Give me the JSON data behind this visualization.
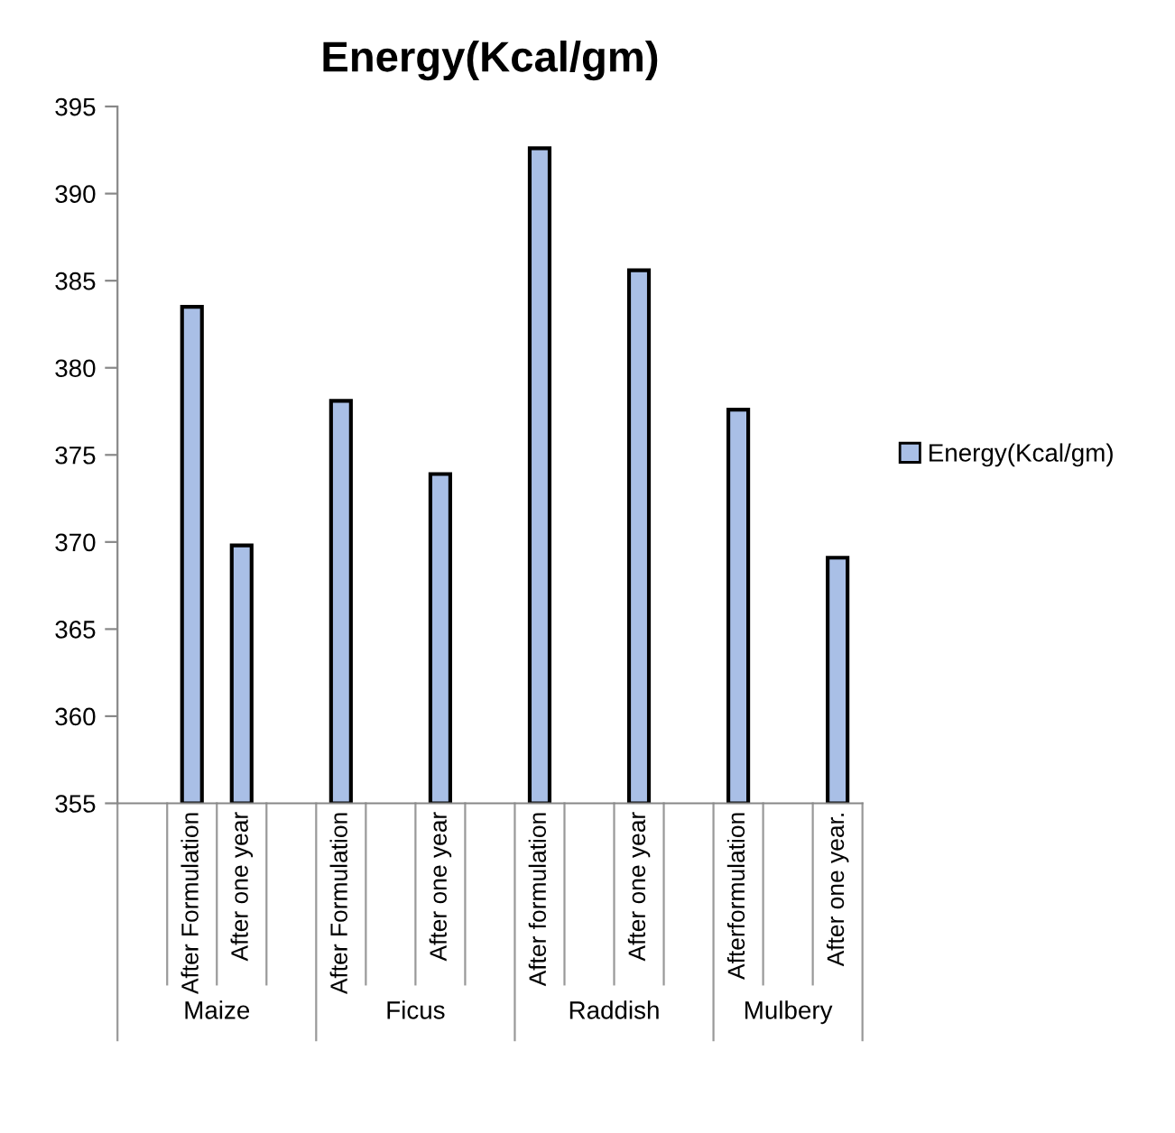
{
  "chart_data": {
    "type": "bar",
    "title": "Energy(Kcal/gm)",
    "categories": [
      null,
      "After Formulation",
      "After one year",
      null,
      "After Formulation",
      null,
      "After one year",
      null,
      "After formulation",
      null,
      "After one year",
      null,
      "Afterformulation",
      null,
      "After one year."
    ],
    "series": [
      {
        "name": "Energy(Kcal/gm)",
        "color": "#a9bfe6",
        "values": [
          null,
          383.5,
          369.8,
          null,
          378.1,
          null,
          373.9,
          null,
          392.6,
          null,
          385.6,
          null,
          377.6,
          null,
          369.1
        ]
      }
    ],
    "annotations": [
      "Maize",
      "Ficus",
      "Raddish",
      "Mulbery"
    ],
    "ylim": [
      355,
      395
    ],
    "yticks": [
      355,
      360,
      365,
      370,
      375,
      380,
      385,
      390,
      395
    ],
    "legend": "right",
    "grid": false
  }
}
